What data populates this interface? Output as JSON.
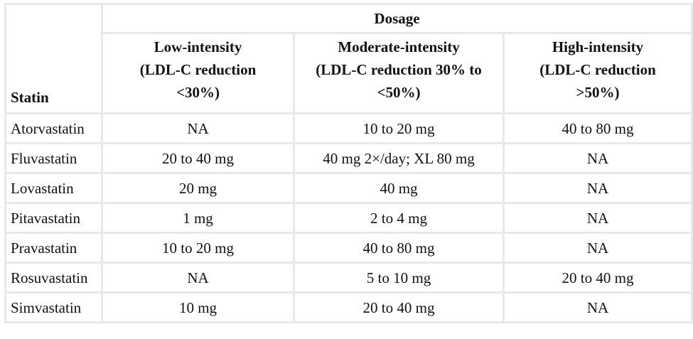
{
  "table": {
    "statin_header": "Statin",
    "dosage_header": "Dosage",
    "intensity_headers": [
      {
        "line1": "Low-intensity",
        "line2": "(LDL-C reduction",
        "line3": "<30%)"
      },
      {
        "line1": "Moderate-intensity",
        "line2": "(LDL-C reduction 30% to",
        "line3": "<50%)"
      },
      {
        "line1": "High-intensity",
        "line2": "(LDL-C reduction",
        "line3": ">50%)"
      }
    ],
    "rows": [
      {
        "statin": "Atorvastatin",
        "low": "NA",
        "moderate": "10 to 20 mg",
        "high": "40 to 80 mg"
      },
      {
        "statin": "Fluvastatin",
        "low": "20 to 40 mg",
        "moderate": "40 mg 2×/day; XL 80 mg",
        "high": "NA"
      },
      {
        "statin": "Lovastatin",
        "low": "20 mg",
        "moderate": "40 mg",
        "high": "NA"
      },
      {
        "statin": "Pitavastatin",
        "low": "1 mg",
        "moderate": "2 to 4 mg",
        "high": "NA"
      },
      {
        "statin": "Pravastatin",
        "low": "10 to 20 mg",
        "moderate": "40 to 80 mg",
        "high": "NA"
      },
      {
        "statin": "Rosuvastatin",
        "low": "NA",
        "moderate": "5 to 10 mg",
        "high": "20 to 40 mg"
      },
      {
        "statin": "Simvastatin",
        "low": "10 mg",
        "moderate": "20 to 40 mg",
        "high": "NA"
      }
    ]
  }
}
